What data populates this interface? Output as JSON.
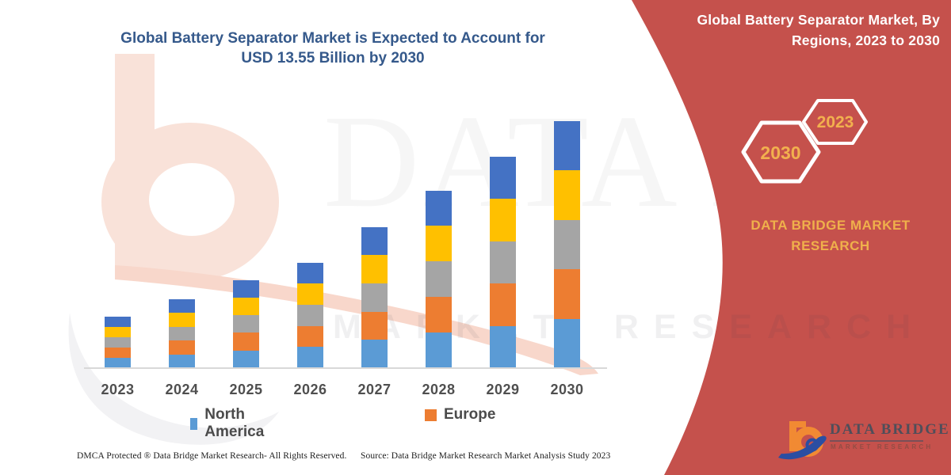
{
  "title": {
    "line1": "Global Battery Separator Market is Expected to Account for",
    "line2": "USD 13.55 Billion by 2030"
  },
  "banner": {
    "heading_line1": "Global Battery Separator Market, By",
    "heading_line2": "Regions, 2023 to 2030",
    "hexagons": [
      {
        "label": "2030"
      },
      {
        "label": "2023"
      }
    ],
    "brand_line1": "DATA BRIDGE MARKET",
    "brand_line2": "RESEARCH",
    "background_color": "#C5514C",
    "gold_text_color": "#EFB04B"
  },
  "watermark": {
    "big_text": "DATA BRIDGE",
    "row_text": "MARKET RESEARCH"
  },
  "chart_data": {
    "type": "bar",
    "stacked": true,
    "title": "Global Battery Separator Market is Expected to Account for USD 13.55 Billion by 2030",
    "categories": [
      "2023",
      "2024",
      "2025",
      "2026",
      "2027",
      "2028",
      "2029",
      "2030"
    ],
    "series": [
      {
        "name": "North America",
        "color": "#5B9BD5",
        "shown_in_legend": true,
        "values": [
          0.57,
          0.76,
          0.97,
          1.16,
          1.55,
          1.95,
          2.32,
          2.71
        ]
      },
      {
        "name": "Europe",
        "color": "#ED7D31",
        "shown_in_legend": true,
        "values": [
          0.57,
          0.76,
          0.97,
          1.16,
          1.55,
          1.95,
          2.32,
          2.71
        ]
      },
      {
        "name": "",
        "color": "#A5A5A5",
        "shown_in_legend": false,
        "values": [
          0.57,
          0.76,
          0.97,
          1.16,
          1.55,
          1.95,
          2.32,
          2.71
        ]
      },
      {
        "name": "",
        "color": "#FFC000",
        "shown_in_legend": false,
        "values": [
          0.57,
          0.76,
          0.97,
          1.16,
          1.55,
          1.95,
          2.32,
          2.71
        ]
      },
      {
        "name": "",
        "color": "#4472C4",
        "shown_in_legend": false,
        "values": [
          0.57,
          0.76,
          0.97,
          1.16,
          1.55,
          1.95,
          2.32,
          2.71
        ]
      }
    ],
    "totals_estimated": [
      2.85,
      3.8,
      4.85,
      5.8,
      7.75,
      9.75,
      11.6,
      13.55
    ],
    "values_unit": "USD billion (estimated from bar heights; 2030 total = 13.55 per title)",
    "xlabel": "",
    "ylabel": "",
    "y_axis_visible": false,
    "grid": false,
    "legend": [
      {
        "label": "North America",
        "color": "#5B9BD5"
      },
      {
        "label": "Europe",
        "color": "#ED7D31"
      }
    ],
    "legend_position": "bottom"
  },
  "footer": {
    "left": "DMCA Protected ® Data Bridge Market Research-  All Rights Reserved.",
    "right": "Source: Data Bridge Market Research  Market Analysis Study 2023"
  },
  "logo": {
    "name": "DATA BRIDGE",
    "subtitle": "MARKET RESEARCH"
  }
}
